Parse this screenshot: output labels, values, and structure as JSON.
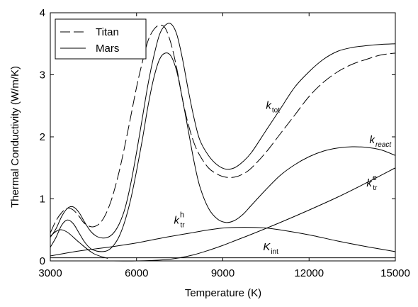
{
  "chart_data": {
    "type": "line",
    "title": "",
    "xlabel": "Temperature (K)",
    "ylabel": "Thermal Conductivity (W/m/K)",
    "xlim": [
      3000,
      15000
    ],
    "ylim": [
      0,
      4
    ],
    "x_ticks": [
      "3000",
      "6000",
      "9000",
      "12000",
      "15000"
    ],
    "y_ticks": [
      "0",
      "1",
      "2",
      "3",
      "4"
    ],
    "x_tick_values": [
      3000,
      6000,
      9000,
      12000,
      15000
    ],
    "y_tick_values": [
      0,
      1,
      2,
      3,
      4
    ],
    "grid": false,
    "legend_position": "top-left",
    "legend": [
      {
        "label": "Titan",
        "style": "dashed"
      },
      {
        "label": "Mars",
        "style": "solid"
      }
    ],
    "annotations": [
      {
        "base": "k",
        "sub": "tot",
        "sup": "",
        "x": 10500,
        "y": 2.45
      },
      {
        "base": "k",
        "sub": "react",
        "sup": "",
        "x": 14100,
        "y": 1.9
      },
      {
        "base": "k",
        "sub": "tr",
        "sup": "e",
        "x": 14000,
        "y": 1.2
      },
      {
        "base": "k",
        "sub": "tr",
        "sup": "h",
        "x": 7300,
        "y": 0.6
      },
      {
        "base": "K",
        "sub": "int",
        "sup": "",
        "x": 10400,
        "y": 0.17
      }
    ],
    "series": [
      {
        "style": "dashed",
        "x": [
          3000,
          3200,
          3400,
          3600,
          3800,
          4000,
          4200,
          4500,
          4800,
          5100,
          5400,
          5700,
          6000,
          6200,
          6400,
          6600,
          6800,
          7000,
          7200,
          7400,
          7600,
          7800,
          8000,
          8200,
          8500,
          8800,
          9100,
          9400,
          9700,
          10000,
          10500,
          11000,
          11500,
          12000,
          12500,
          13000,
          13500,
          14000,
          14500,
          15000
        ],
        "y": [
          0.45,
          0.65,
          0.78,
          0.85,
          0.82,
          0.72,
          0.6,
          0.55,
          0.65,
          0.95,
          1.45,
          2.1,
          2.8,
          3.2,
          3.55,
          3.73,
          3.8,
          3.75,
          3.5,
          3.1,
          2.6,
          2.2,
          1.9,
          1.7,
          1.5,
          1.4,
          1.35,
          1.35,
          1.4,
          1.5,
          1.75,
          2.05,
          2.35,
          2.65,
          2.88,
          3.05,
          3.17,
          3.25,
          3.32,
          3.35
        ]
      },
      {
        "style": "solid",
        "x": [
          3000,
          3200,
          3400,
          3600,
          3800,
          4000,
          4200,
          4400,
          4600,
          4800,
          5000,
          5200,
          5400,
          5600,
          5800,
          6000,
          6200,
          6400,
          6600,
          6800,
          7000,
          7200,
          7400,
          7600,
          7800,
          8000,
          8200,
          8500,
          8800,
          9100,
          9400,
          9700,
          10000,
          10500,
          11000,
          11500,
          12000,
          12500,
          13000,
          13500,
          14000,
          14500,
          15000
        ],
        "y": [
          0.38,
          0.52,
          0.72,
          0.85,
          0.87,
          0.78,
          0.62,
          0.48,
          0.4,
          0.37,
          0.38,
          0.45,
          0.6,
          0.85,
          1.25,
          1.75,
          2.3,
          2.85,
          3.3,
          3.65,
          3.8,
          3.82,
          3.65,
          3.25,
          2.75,
          2.3,
          1.95,
          1.7,
          1.55,
          1.48,
          1.5,
          1.6,
          1.75,
          2.1,
          2.45,
          2.8,
          3.05,
          3.25,
          3.38,
          3.44,
          3.47,
          3.49,
          3.5
        ]
      },
      {
        "style": "solid",
        "x": [
          3000,
          3200,
          3400,
          3600,
          3800,
          4000,
          4200,
          4400,
          4600,
          4800,
          5000,
          5200,
          5400,
          5600,
          5800,
          6000,
          6200,
          6400,
          6600,
          6800,
          7000,
          7200,
          7400,
          7600,
          7800,
          8000,
          8200,
          8500,
          8800,
          9100,
          9400,
          9700,
          10000,
          10500,
          11000,
          11500,
          12000,
          12500,
          13000,
          13500,
          14000,
          14500,
          15000
        ],
        "y": [
          0.22,
          0.38,
          0.58,
          0.66,
          0.6,
          0.45,
          0.3,
          0.2,
          0.16,
          0.15,
          0.17,
          0.25,
          0.4,
          0.65,
          1.0,
          1.45,
          1.95,
          2.5,
          2.95,
          3.25,
          3.35,
          3.3,
          3.05,
          2.6,
          2.1,
          1.6,
          1.2,
          0.85,
          0.68,
          0.62,
          0.65,
          0.75,
          0.9,
          1.15,
          1.38,
          1.55,
          1.68,
          1.77,
          1.82,
          1.84,
          1.83,
          1.79,
          1.7
        ]
      },
      {
        "style": "solid",
        "x": [
          3000,
          3300,
          3600,
          4000,
          4500,
          5000
        ],
        "y": [
          0.4,
          0.5,
          0.46,
          0.3,
          0.12,
          0.04
        ]
      },
      {
        "style": "solid",
        "x": [
          3000,
          4000,
          5000,
          6000,
          7000,
          8000,
          8500,
          9000,
          9500,
          10000,
          10500,
          11000,
          12000,
          13000,
          14000,
          15000
        ],
        "y": [
          0.08,
          0.16,
          0.22,
          0.29,
          0.38,
          0.46,
          0.5,
          0.53,
          0.54,
          0.54,
          0.53,
          0.5,
          0.42,
          0.32,
          0.23,
          0.15
        ]
      },
      {
        "style": "solid",
        "x": [
          5000,
          6000,
          7000,
          7500,
          8000,
          8500,
          9000,
          9500,
          10000,
          11000,
          12000,
          13000,
          14000,
          15000
        ],
        "y": [
          0.0,
          0.0,
          0.02,
          0.05,
          0.1,
          0.17,
          0.25,
          0.34,
          0.43,
          0.62,
          0.82,
          1.03,
          1.26,
          1.5
        ]
      },
      {
        "style": "solid",
        "x": [
          3000,
          4000,
          6000,
          8000,
          10000,
          12000,
          14000,
          15000
        ],
        "y": [
          0.05,
          0.05,
          0.05,
          0.05,
          0.05,
          0.05,
          0.05,
          0.05
        ]
      }
    ]
  }
}
